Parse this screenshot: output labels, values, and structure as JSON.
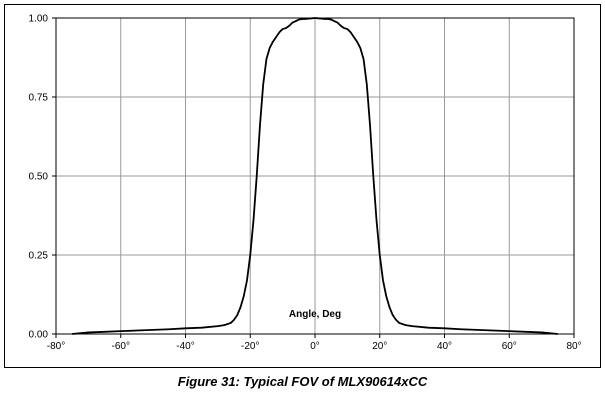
{
  "caption": "Figure 31: Typical FOV of MLX90614xCC",
  "chart_data": {
    "type": "line",
    "title": "",
    "xlabel": "",
    "ylabel": "",
    "annotation": "Angle, Deg",
    "xlim": [
      -80,
      80
    ],
    "ylim": [
      0,
      1
    ],
    "grid": true,
    "x_ticks": [
      -80,
      -60,
      -40,
      -20,
      0,
      20,
      40,
      60,
      80
    ],
    "x_tick_labels": [
      "-80°",
      "-60°",
      "-40°",
      "-20°",
      "0°",
      "20°",
      "40°",
      "60°",
      "80°"
    ],
    "y_ticks": [
      0,
      0.25,
      0.5,
      0.75,
      1.0
    ],
    "y_tick_labels": [
      "0.00",
      "0.25",
      "0.50",
      "0.75",
      "1.00"
    ],
    "series": [
      {
        "name": "FOV",
        "color": "#000000",
        "x": [
          -75,
          -72,
          -70,
          -65,
          -60,
          -55,
          -50,
          -45,
          -40,
          -35,
          -30,
          -28,
          -26,
          -25,
          -24,
          -23,
          -22,
          -21,
          -20,
          -19,
          -18,
          -17,
          -16,
          -15,
          -14,
          -13,
          -12,
          -11,
          -10,
          -9,
          -8,
          -7,
          -6,
          -5,
          -4,
          -3,
          -2,
          -1,
          0,
          1,
          2,
          3,
          4,
          5,
          6,
          7,
          8,
          9,
          10,
          11,
          12,
          13,
          14,
          15,
          16,
          17,
          18,
          19,
          20,
          21,
          22,
          23,
          24,
          25,
          26,
          28,
          30,
          35,
          40,
          45,
          50,
          55,
          60,
          65,
          70,
          72,
          75
        ],
        "y": [
          0.0,
          0.003,
          0.005,
          0.007,
          0.009,
          0.011,
          0.013,
          0.015,
          0.018,
          0.02,
          0.025,
          0.028,
          0.035,
          0.045,
          0.06,
          0.085,
          0.12,
          0.17,
          0.25,
          0.36,
          0.5,
          0.66,
          0.79,
          0.87,
          0.905,
          0.925,
          0.94,
          0.955,
          0.965,
          0.968,
          0.975,
          0.985,
          0.99,
          0.995,
          0.997,
          0.997,
          0.998,
          0.999,
          1.0,
          0.999,
          0.998,
          0.997,
          0.997,
          0.995,
          0.99,
          0.985,
          0.975,
          0.968,
          0.965,
          0.955,
          0.94,
          0.925,
          0.905,
          0.87,
          0.79,
          0.66,
          0.5,
          0.36,
          0.25,
          0.17,
          0.12,
          0.085,
          0.06,
          0.045,
          0.035,
          0.028,
          0.025,
          0.02,
          0.018,
          0.015,
          0.013,
          0.011,
          0.009,
          0.007,
          0.005,
          0.003,
          0.0
        ]
      }
    ]
  },
  "colors": {
    "grid": "#9a9a9a",
    "line": "#000000",
    "axis": "#000000"
  }
}
